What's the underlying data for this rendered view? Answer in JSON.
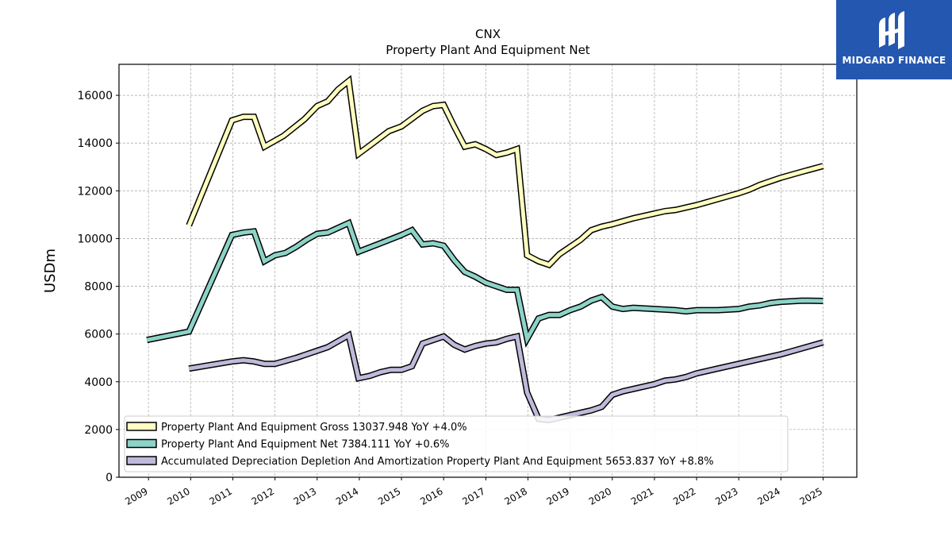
{
  "logo": {
    "text": "MIDGARD FINANCE"
  },
  "chart_data": {
    "type": "line",
    "title": "CNX",
    "subtitle": "Property Plant And Equipment Net",
    "ylabel": "USDm",
    "xlabel": "",
    "ylim": [
      0,
      17300
    ],
    "yticks": [
      0,
      2000,
      4000,
      6000,
      8000,
      10000,
      12000,
      14000,
      16000
    ],
    "xlim": [
      2008.3,
      2025.8
    ],
    "xticks": [
      "2009",
      "2010",
      "2011",
      "2012",
      "2013",
      "2014",
      "2015",
      "2016",
      "2017",
      "2018",
      "2019",
      "2020",
      "2021",
      "2022",
      "2023",
      "2024",
      "2025"
    ],
    "grid": true,
    "legend_position": "lower-left",
    "series": [
      {
        "name": "Property Plant And Equipment Gross",
        "legend": "Property Plant And Equipment Gross  13037.948 YoY +4.0%",
        "color": "#ffffc0",
        "points": [
          [
            2009.96,
            10550
          ],
          [
            2010.98,
            14950
          ],
          [
            2011.25,
            15100
          ],
          [
            2011.5,
            15100
          ],
          [
            2011.75,
            13850
          ],
          [
            2012.2,
            14300
          ],
          [
            2012.7,
            15000
          ],
          [
            2013.0,
            15550
          ],
          [
            2013.25,
            15750
          ],
          [
            2013.5,
            16250
          ],
          [
            2013.75,
            16600
          ],
          [
            2013.98,
            13550
          ],
          [
            2014.25,
            13900
          ],
          [
            2014.7,
            14500
          ],
          [
            2015.0,
            14700
          ],
          [
            2015.5,
            15350
          ],
          [
            2015.75,
            15550
          ],
          [
            2016.0,
            15600
          ],
          [
            2016.25,
            14700
          ],
          [
            2016.5,
            13850
          ],
          [
            2016.75,
            13950
          ],
          [
            2017.0,
            13750
          ],
          [
            2017.25,
            13500
          ],
          [
            2017.5,
            13600
          ],
          [
            2017.74,
            13750
          ],
          [
            2017.98,
            9300
          ],
          [
            2018.25,
            9050
          ],
          [
            2018.5,
            8900
          ],
          [
            2018.75,
            9350
          ],
          [
            2019.0,
            9650
          ],
          [
            2019.25,
            9950
          ],
          [
            2019.5,
            10350
          ],
          [
            2019.75,
            10500
          ],
          [
            2020.0,
            10600
          ],
          [
            2020.5,
            10850
          ],
          [
            2021.0,
            11050
          ],
          [
            2021.25,
            11150
          ],
          [
            2021.5,
            11200
          ],
          [
            2021.75,
            11300
          ],
          [
            2022.0,
            11400
          ],
          [
            2022.5,
            11650
          ],
          [
            2023.0,
            11900
          ],
          [
            2023.25,
            12050
          ],
          [
            2023.5,
            12250
          ],
          [
            2023.75,
            12400
          ],
          [
            2024.0,
            12550
          ],
          [
            2024.5,
            12800
          ],
          [
            2025.0,
            13037.948
          ]
        ]
      },
      {
        "name": "Property Plant And Equipment Net",
        "legend": "Property Plant And Equipment Net  7384.111 YoY +0.6%",
        "color": "#8dd3c7",
        "points": [
          [
            2008.96,
            5750
          ],
          [
            2009.96,
            6100
          ],
          [
            2010.98,
            10150
          ],
          [
            2011.25,
            10250
          ],
          [
            2011.5,
            10300
          ],
          [
            2011.75,
            9050
          ],
          [
            2012.0,
            9300
          ],
          [
            2012.25,
            9400
          ],
          [
            2012.5,
            9650
          ],
          [
            2012.75,
            9950
          ],
          [
            2013.0,
            10200
          ],
          [
            2013.25,
            10250
          ],
          [
            2013.5,
            10450
          ],
          [
            2013.75,
            10650
          ],
          [
            2013.98,
            9450
          ],
          [
            2014.5,
            9800
          ],
          [
            2015.0,
            10150
          ],
          [
            2015.25,
            10350
          ],
          [
            2015.5,
            9750
          ],
          [
            2015.75,
            9800
          ],
          [
            2016.0,
            9700
          ],
          [
            2016.25,
            9100
          ],
          [
            2016.5,
            8600
          ],
          [
            2016.75,
            8400
          ],
          [
            2017.0,
            8150
          ],
          [
            2017.25,
            8000
          ],
          [
            2017.5,
            7850
          ],
          [
            2017.74,
            7850
          ],
          [
            2017.98,
            5800
          ],
          [
            2018.25,
            6650
          ],
          [
            2018.5,
            6800
          ],
          [
            2018.75,
            6800
          ],
          [
            2019.0,
            7000
          ],
          [
            2019.25,
            7150
          ],
          [
            2019.5,
            7400
          ],
          [
            2019.75,
            7550
          ],
          [
            2020.0,
            7150
          ],
          [
            2020.25,
            7050
          ],
          [
            2020.5,
            7100
          ],
          [
            2021.0,
            7050
          ],
          [
            2021.5,
            7000
          ],
          [
            2021.75,
            6950
          ],
          [
            2022.0,
            7000
          ],
          [
            2022.5,
            7000
          ],
          [
            2023.0,
            7050
          ],
          [
            2023.25,
            7150
          ],
          [
            2023.5,
            7200
          ],
          [
            2023.75,
            7300
          ],
          [
            2024.0,
            7350
          ],
          [
            2024.5,
            7400
          ],
          [
            2025.0,
            7384.111
          ]
        ]
      },
      {
        "name": "Accumulated Depreciation Depletion And Amortization Property Plant And Equipment",
        "legend": "Accumulated Depreciation Depletion And Amortization Property Plant And Equipment  5653.837 YoY +8.8%",
        "color": "#bebada",
        "points": [
          [
            2009.96,
            4550
          ],
          [
            2010.98,
            4850
          ],
          [
            2011.25,
            4900
          ],
          [
            2011.5,
            4850
          ],
          [
            2011.75,
            4750
          ],
          [
            2012.0,
            4750
          ],
          [
            2012.5,
            5000
          ],
          [
            2013.0,
            5300
          ],
          [
            2013.25,
            5450
          ],
          [
            2013.5,
            5700
          ],
          [
            2013.75,
            5950
          ],
          [
            2013.98,
            4150
          ],
          [
            2014.25,
            4250
          ],
          [
            2014.5,
            4400
          ],
          [
            2014.75,
            4500
          ],
          [
            2015.0,
            4500
          ],
          [
            2015.25,
            4650
          ],
          [
            2015.5,
            5600
          ],
          [
            2015.75,
            5750
          ],
          [
            2016.0,
            5900
          ],
          [
            2016.25,
            5550
          ],
          [
            2016.5,
            5350
          ],
          [
            2016.75,
            5500
          ],
          [
            2017.0,
            5600
          ],
          [
            2017.25,
            5650
          ],
          [
            2017.5,
            5800
          ],
          [
            2017.74,
            5900
          ],
          [
            2017.98,
            3550
          ],
          [
            2018.25,
            2450
          ],
          [
            2018.5,
            2400
          ],
          [
            2018.75,
            2500
          ],
          [
            2019.0,
            2600
          ],
          [
            2019.25,
            2700
          ],
          [
            2019.5,
            2800
          ],
          [
            2019.75,
            2950
          ],
          [
            2020.0,
            3450
          ],
          [
            2020.25,
            3600
          ],
          [
            2020.5,
            3700
          ],
          [
            2020.75,
            3800
          ],
          [
            2021.0,
            3900
          ],
          [
            2021.25,
            4050
          ],
          [
            2021.5,
            4100
          ],
          [
            2021.75,
            4200
          ],
          [
            2022.0,
            4350
          ],
          [
            2022.5,
            4550
          ],
          [
            2023.0,
            4750
          ],
          [
            2023.5,
            4950
          ],
          [
            2024.0,
            5150
          ],
          [
            2024.5,
            5400
          ],
          [
            2025.0,
            5653.837
          ]
        ]
      }
    ]
  }
}
